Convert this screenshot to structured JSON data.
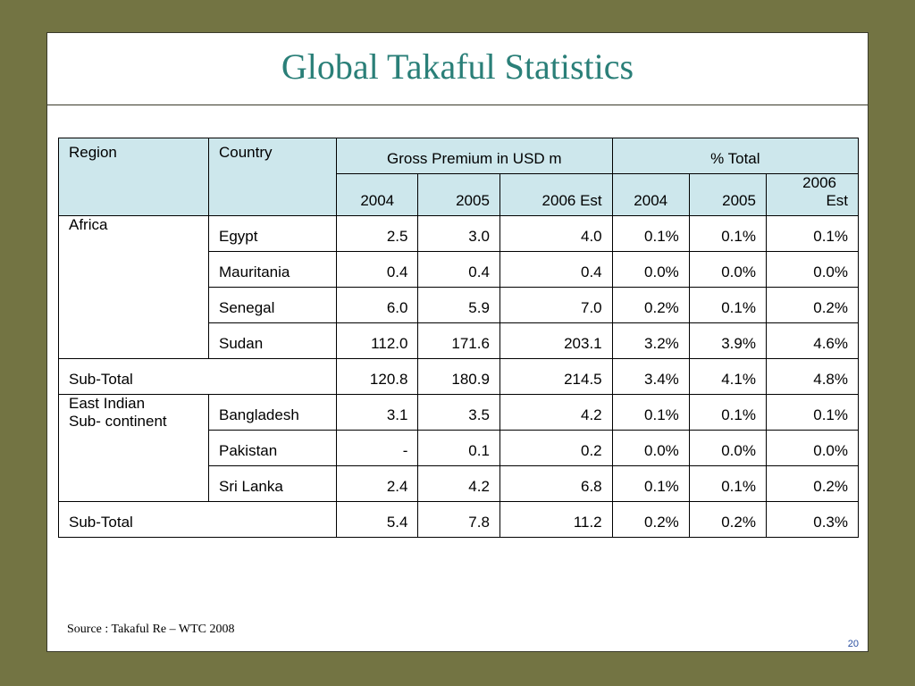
{
  "slide": {
    "title": "Global Takaful Statistics",
    "source": "Source : Takaful Re – WTC 2008",
    "page_number": "20"
  },
  "table": {
    "headers": {
      "region": "Region",
      "country": "Country",
      "gross_premium": "Gross Premium in USD m",
      "pct_total": "% Total",
      "gp_2004": "2004",
      "gp_2005": "2005",
      "gp_2006": "2006 Est",
      "pt_2004": "2004",
      "pt_2005": "2005",
      "pt_2006_line1": "2006",
      "pt_2006_line2": "Est"
    },
    "rows": [
      {
        "region": "Africa",
        "country": "Egypt",
        "gp2004": "2.5",
        "gp2005": "3.0",
        "gp2006": "4.0",
        "pt2004": "0.1%",
        "pt2005": "0.1%",
        "pt2006": "0.1%"
      },
      {
        "region": "",
        "country": "Mauritania",
        "gp2004": "0.4",
        "gp2005": "0.4",
        "gp2006": "0.4",
        "pt2004": "0.0%",
        "pt2005": "0.0%",
        "pt2006": "0.0%"
      },
      {
        "region": "",
        "country": "Senegal",
        "gp2004": "6.0",
        "gp2005": "5.9",
        "gp2006": "7.0",
        "pt2004": "0.2%",
        "pt2005": "0.1%",
        "pt2006": "0.2%"
      },
      {
        "region": "",
        "country": "Sudan",
        "gp2004": "112.0",
        "gp2005": "171.6",
        "gp2006": "203.1",
        "pt2004": "3.2%",
        "pt2005": "3.9%",
        "pt2006": "4.6%"
      },
      {
        "label": "Sub-Total",
        "gp2004": "120.8",
        "gp2005": "180.9",
        "gp2006": "214.5",
        "pt2004": "3.4%",
        "pt2005": "4.1%",
        "pt2006": "4.8%"
      },
      {
        "region_line1": "East Indian",
        "region_line2": "Sub- continent",
        "country": "Bangladesh",
        "gp2004": "3.1",
        "gp2005": "3.5",
        "gp2006": "4.2",
        "pt2004": "0.1%",
        "pt2005": "0.1%",
        "pt2006": "0.1%"
      },
      {
        "region": "",
        "country": "Pakistan",
        "gp2004": "-",
        "gp2005": "0.1",
        "gp2006": "0.2",
        "pt2004": "0.0%",
        "pt2005": "0.0%",
        "pt2006": "0.0%"
      },
      {
        "region": "",
        "country": "Sri Lanka",
        "gp2004": "2.4",
        "gp2005": "4.2",
        "gp2006": "6.8",
        "pt2004": "0.1%",
        "pt2005": "0.1%",
        "pt2006": "0.2%"
      },
      {
        "label": "Sub-Total",
        "gp2004": "5.4",
        "gp2005": "7.8",
        "gp2006": "11.2",
        "pt2004": "0.2%",
        "pt2005": "0.2%",
        "pt2006": "0.3%"
      }
    ]
  },
  "colors": {
    "background": "#737443",
    "title": "#2a7f78",
    "header_fill": "#cde7ec",
    "page_number": "#2a4fa0"
  }
}
